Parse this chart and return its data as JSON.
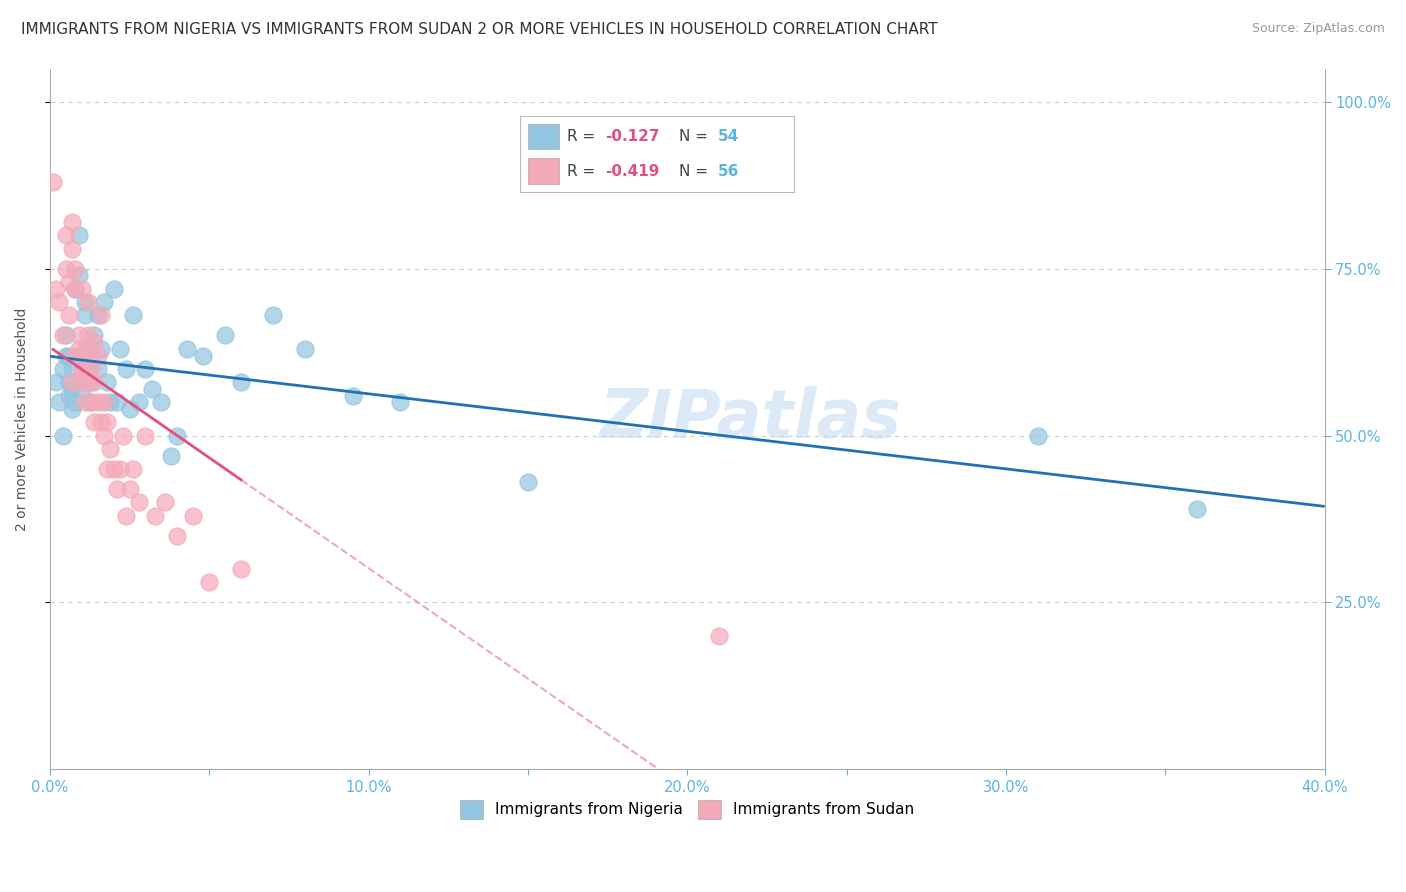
{
  "title": "IMMIGRANTS FROM NIGERIA VS IMMIGRANTS FROM SUDAN 2 OR MORE VEHICLES IN HOUSEHOLD CORRELATION CHART",
  "source": "Source: ZipAtlas.com",
  "ylabel": "2 or more Vehicles in Household",
  "xlim": [
    0.0,
    0.4
  ],
  "ylim": [
    0.0,
    1.05
  ],
  "xtick_labels": [
    "0.0%",
    "",
    "10.0%",
    "",
    "20.0%",
    "",
    "30.0%",
    "",
    "40.0%"
  ],
  "xtick_values": [
    0.0,
    0.05,
    0.1,
    0.15,
    0.2,
    0.25,
    0.3,
    0.35,
    0.4
  ],
  "ytick_labels": [
    "25.0%",
    "50.0%",
    "75.0%",
    "100.0%"
  ],
  "ytick_values": [
    0.25,
    0.5,
    0.75,
    1.0
  ],
  "nigeria_color": "#92c5de",
  "nigeria_line_color": "#2171b5",
  "sudan_color": "#f4a9b8",
  "sudan_line_color": "#e05080",
  "nigeria_R": -0.127,
  "nigeria_N": 54,
  "sudan_R": -0.419,
  "sudan_N": 56,
  "nigeria_scatter_x": [
    0.002,
    0.003,
    0.004,
    0.004,
    0.005,
    0.005,
    0.006,
    0.006,
    0.006,
    0.007,
    0.007,
    0.007,
    0.008,
    0.008,
    0.009,
    0.009,
    0.01,
    0.01,
    0.011,
    0.011,
    0.012,
    0.012,
    0.013,
    0.013,
    0.014,
    0.015,
    0.015,
    0.016,
    0.017,
    0.018,
    0.019,
    0.02,
    0.021,
    0.022,
    0.024,
    0.025,
    0.026,
    0.028,
    0.03,
    0.032,
    0.035,
    0.038,
    0.04,
    0.043,
    0.048,
    0.055,
    0.06,
    0.07,
    0.08,
    0.095,
    0.11,
    0.15,
    0.31,
    0.36
  ],
  "nigeria_scatter_y": [
    0.58,
    0.55,
    0.6,
    0.5,
    0.62,
    0.65,
    0.56,
    0.58,
    0.62,
    0.57,
    0.54,
    0.6,
    0.72,
    0.55,
    0.8,
    0.74,
    0.62,
    0.57,
    0.7,
    0.68,
    0.6,
    0.63,
    0.55,
    0.58,
    0.65,
    0.68,
    0.6,
    0.63,
    0.7,
    0.58,
    0.55,
    0.72,
    0.55,
    0.63,
    0.6,
    0.54,
    0.68,
    0.55,
    0.6,
    0.57,
    0.55,
    0.47,
    0.5,
    0.63,
    0.62,
    0.65,
    0.58,
    0.68,
    0.63,
    0.56,
    0.55,
    0.43,
    0.5,
    0.39
  ],
  "sudan_scatter_x": [
    0.001,
    0.002,
    0.003,
    0.004,
    0.005,
    0.005,
    0.006,
    0.006,
    0.007,
    0.007,
    0.007,
    0.008,
    0.008,
    0.008,
    0.009,
    0.009,
    0.01,
    0.01,
    0.01,
    0.011,
    0.011,
    0.011,
    0.012,
    0.012,
    0.012,
    0.013,
    0.013,
    0.013,
    0.014,
    0.014,
    0.014,
    0.015,
    0.015,
    0.016,
    0.016,
    0.017,
    0.017,
    0.018,
    0.018,
    0.019,
    0.02,
    0.021,
    0.022,
    0.023,
    0.024,
    0.025,
    0.026,
    0.028,
    0.03,
    0.033,
    0.036,
    0.04,
    0.045,
    0.05,
    0.06,
    0.21
  ],
  "sudan_scatter_y": [
    0.88,
    0.72,
    0.7,
    0.65,
    0.75,
    0.8,
    0.73,
    0.68,
    0.78,
    0.82,
    0.58,
    0.72,
    0.62,
    0.75,
    0.65,
    0.63,
    0.58,
    0.6,
    0.72,
    0.55,
    0.63,
    0.6,
    0.65,
    0.7,
    0.58,
    0.62,
    0.55,
    0.6,
    0.52,
    0.58,
    0.64,
    0.62,
    0.55,
    0.52,
    0.68,
    0.55,
    0.5,
    0.45,
    0.52,
    0.48,
    0.45,
    0.42,
    0.45,
    0.5,
    0.38,
    0.42,
    0.45,
    0.4,
    0.5,
    0.38,
    0.4,
    0.35,
    0.38,
    0.28,
    0.3,
    0.2
  ],
  "watermark": "ZIPatlas",
  "title_fontsize": 11,
  "label_fontsize": 10,
  "tick_fontsize": 10.5,
  "background_color": "#ffffff",
  "grid_color": "#cccccc",
  "axis_color": "#aaaaaa",
  "tick_color": "#5ab4e0"
}
